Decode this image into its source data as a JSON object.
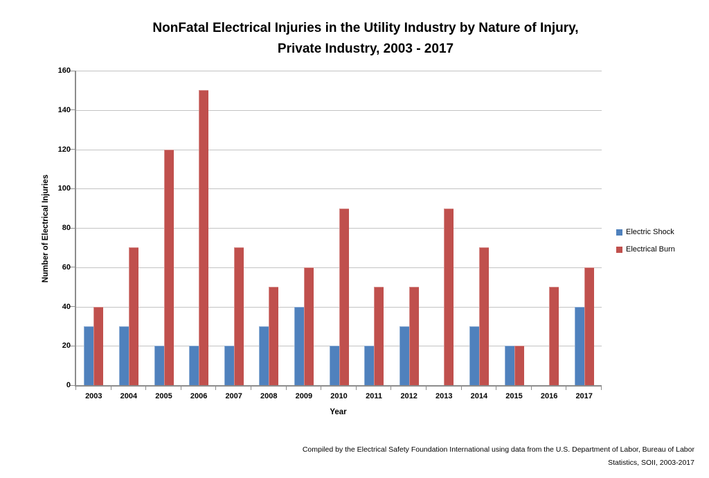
{
  "chart": {
    "title_line1": "NonFatal Electrical Injuries in the Utility Industry by Nature of Injury,",
    "title_line2": "Private Industry, 2003 - 2017"
  },
  "chart_data": {
    "type": "bar",
    "title": "NonFatal Electrical Injuries in the Utility Industry by Nature of Injury, Private Industry, 2003 - 2017",
    "xlabel": "Year",
    "ylabel": "Number of Electrical Injuries",
    "ylim": [
      0,
      160
    ],
    "ytick_step": 20,
    "grid": true,
    "legend_position": "right",
    "categories": [
      "2003",
      "2004",
      "2005",
      "2006",
      "2007",
      "2008",
      "2009",
      "2010",
      "2011",
      "2012",
      "2013",
      "2014",
      "2015",
      "2016",
      "2017"
    ],
    "series": [
      {
        "name": "Electric Shock",
        "color": "#4F81BD",
        "values": [
          30,
          30,
          20,
          20,
          20,
          30,
          40,
          20,
          20,
          30,
          0,
          30,
          20,
          0,
          40
        ]
      },
      {
        "name": "Electrical Burn",
        "color": "#C0504D",
        "values": [
          40,
          70,
          120,
          150,
          70,
          50,
          60,
          90,
          50,
          50,
          90,
          70,
          20,
          50,
          60
        ]
      }
    ]
  },
  "footer": {
    "line1": "Compiled by the Electrical Safety Foundation International using data from the U.S. Department of Labor, Bureau of Labor",
    "line2": "Statistics, SOII, 2003-2017"
  }
}
